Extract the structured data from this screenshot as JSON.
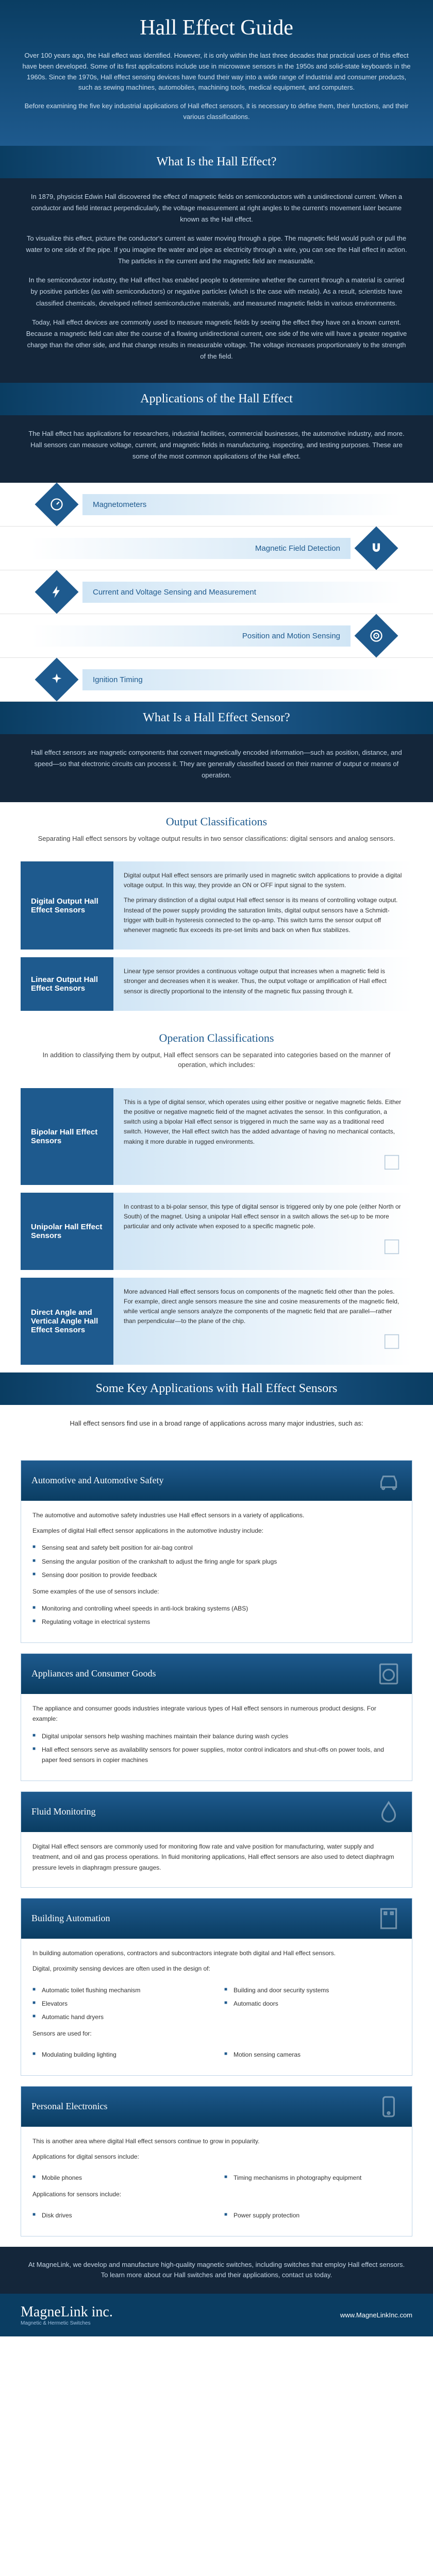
{
  "colors": {
    "darkBlue": "#0a3d62",
    "medBlue": "#1e5a8e",
    "lightBlue": "#d0e5f5",
    "darkBg": "#14263a",
    "textLight": "#c5d5e5"
  },
  "header": {
    "title": "Hall Effect Guide",
    "p1": "Over 100 years ago, the Hall effect was identified. However, it is only within the last three decades that practical uses of this effect have been developed. Some of its first applications include use in microwave sensors in the 1950s and solid-state keyboards in the 1960s. Since the 1970s, Hall effect sensing devices have found their way into a wide range of industrial and consumer products, such as sewing machines, automobiles, machining tools, medical equipment, and computers.",
    "p2": "Before examining the five key industrial applications of Hall effect sensors, it is necessary to define them, their functions, and their various classifications."
  },
  "whatIs": {
    "title": "What Is the Hall Effect?",
    "p1": "In 1879, physicist Edwin Hall discovered the effect of magnetic fields on semiconductors with a unidirectional current. When a conductor and field interact perpendicularly, the voltage measurement at right angles to the current's movement later became known as the Hall effect.",
    "p2": "To visualize this effect, picture the conductor's current as water moving through a pipe. The magnetic field would push or pull the water to one side of the pipe. If you imagine the water and pipe as electricity through a wire, you can see the Hall effect in action. The particles in the current and the magnetic field are measurable.",
    "p3": "In the semiconductor industry, the Hall effect has enabled people to determine whether the current through a material is carried by positive particles (as with semiconductors) or negative particles (which is the case with metals). As a result, scientists have classified chemicals, developed refined semiconductive materials, and measured magnetic fields in various environments.",
    "p4": "Today, Hall effect devices are commonly used to measure magnetic fields by seeing the effect they have on a known current. Because a magnetic field can alter the course of a flowing unidirectional current, one side of the wire will have a greater negative charge than the other side, and that change results in measurable voltage. The voltage increases proportionately to the strength of the field."
  },
  "applications": {
    "title": "Applications of the Hall Effect",
    "intro": "The Hall effect has applications for researchers, industrial facilities, commercial businesses, the automotive industry, and more. Hall sensors can measure voltage, current, and magnetic fields in manufacturing, inspecting, and testing purposes. These are some of the most common applications of the Hall effect.",
    "items": [
      "Magnetometers",
      "Magnetic Field Detection",
      "Current and Voltage Sensing and Measurement",
      "Position and Motion Sensing",
      "Ignition Timing"
    ]
  },
  "sensor": {
    "title": "What Is a Hall Effect Sensor?",
    "intro": "Hall effect sensors are magnetic components that convert magnetically encoded information—such as position, distance, and speed—so that electronic circuits can process it. They are generally classified based on their manner of output or means of operation."
  },
  "outputClass": {
    "title": "Output Classifications",
    "desc": "Separating Hall effect sensors by voltage output results in two sensor classifications: digital sensors and analog sensors.",
    "cards": [
      {
        "title": "Digital Output Hall Effect Sensors",
        "body": [
          "Digital output Hall effect sensors are primarily used in magnetic switch applications to provide a digital voltage output. In this way, they provide an ON or OFF input signal to the system.",
          "The primary distinction of a digital output Hall effect sensor is its means of controlling voltage output. Instead of the power supply providing the saturation limits, digital output sensors have a Schmidt-trigger with built-in hysteresis connected to the op-amp. This switch turns the sensor output off whenever magnetic flux exceeds its pre-set limits and back on when flux stabilizes."
        ]
      },
      {
        "title": "Linear Output Hall Effect Sensors",
        "body": [
          "Linear type sensor provides a continuous voltage output that increases when a magnetic field is stronger and decreases when it is weaker. Thus, the output voltage or amplification of Hall effect sensor is directly proportional to the intensity of the magnetic flux passing through it."
        ]
      }
    ]
  },
  "opClass": {
    "title": "Operation Classifications",
    "desc": "In addition to classifying them by output, Hall effect sensors can be separated into categories based on the manner of operation, which includes:",
    "cards": [
      {
        "title": "Bipolar Hall Effect Sensors",
        "body": [
          "This is a type of digital sensor, which operates using either positive or negative magnetic fields. Either the positive or negative magnetic field of the magnet activates the sensor. In this configuration, a switch using a bipolar Hall effect sensor is triggered in much the same way as a traditional reed switch. However, the Hall effect switch has the added advantage of having no mechanical contacts, making it more durable in rugged environments."
        ]
      },
      {
        "title": "Unipolar Hall Effect Sensors",
        "body": [
          "In contrast to a bi-polar sensor, this type of digital sensor is triggered only by one pole (either North or South) of the magnet. Using a unipolar Hall effect sensor in a switch allows the set-up to be more particular and only activate when exposed to a specific magnetic pole."
        ]
      },
      {
        "title": "Direct Angle and Vertical Angle Hall Effect Sensors",
        "body": [
          "More advanced Hall effect sensors focus on components of the magnetic field other than the poles. For example, direct angle sensors measure the sine and cosine measurements of the magnetic field, while vertical angle sensors analyze the components of the magnetic field that are parallel—rather than perpendicular—to the plane of the chip."
        ]
      }
    ]
  },
  "keyApps": {
    "title": "Some Key Applications with Hall Effect Sensors",
    "intro": "Hall effect sensors find use in a broad range of applications across many major industries, such as:",
    "sections": [
      {
        "title": "Automotive and Automotive Safety",
        "p": [
          "The automotive and automotive safety industries use Hall effect sensors in a variety of applications.",
          "Examples of digital Hall effect sensor applications in the automotive industry include:"
        ],
        "list1": [
          "Sensing seat and safety belt position for air-bag control",
          "Sensing the angular position of the crankshaft to adjust the firing angle for spark plugs",
          "Sensing door position to provide feedback"
        ],
        "p2": "Some examples of the use of sensors include:",
        "list2": [
          "Monitoring and controlling wheel speeds in anti-lock braking systems (ABS)",
          "Regulating voltage in electrical systems"
        ],
        "icon": "car"
      },
      {
        "title": "Appliances and Consumer Goods",
        "p": [
          "The appliance and consumer goods industries integrate various types of Hall effect sensors in numerous product designs. For example:"
        ],
        "list1": [
          "Digital unipolar sensors help washing machines maintain their balance during wash cycles",
          "Hall effect sensors serve as availability sensors for power supplies, motor control indicators and shut-offs on power tools, and paper feed sensors in copier machines"
        ],
        "icon": "washer"
      },
      {
        "title": "Fluid Monitoring",
        "p": [
          "Digital Hall effect sensors are commonly used for monitoring flow rate and valve position for manufacturing, water supply and treatment, and oil and gas process operations. In fluid monitoring applications, Hall effect sensors are also used to detect diaphragm pressure levels in diaphragm pressure gauges."
        ],
        "icon": "drop"
      },
      {
        "title": "Building Automation",
        "p": [
          "In building automation operations, contractors and subcontractors integrate both digital and Hall effect sensors.",
          "Digital, proximity sensing devices are often used in the design of:"
        ],
        "cols": [
          [
            "Automatic toilet flushing mechanism",
            "Elevators",
            "Automatic hand dryers"
          ],
          [
            "Building and door security systems",
            "Automatic doors"
          ]
        ],
        "p2": "Sensors are used for:",
        "cols2": [
          [
            "Modulating building lighting"
          ],
          [
            "Motion sensing cameras"
          ]
        ],
        "icon": "building"
      },
      {
        "title": "Personal Electronics",
        "p": [
          "This is another area where digital Hall effect sensors continue to grow in popularity.",
          "Applications for digital sensors include:"
        ],
        "cols": [
          [
            "Mobile phones"
          ],
          [
            "Timing mechanisms in photography equipment"
          ]
        ],
        "p2": "Applications for sensors include:",
        "cols2": [
          [
            "Disk drives"
          ],
          [
            "Power supply protection"
          ]
        ],
        "icon": "phone"
      }
    ]
  },
  "footer": {
    "text": "At MagneLink, we develop and manufacture high-quality magnetic switches, including switches that employ Hall effect sensors. To learn more about our Hall switches and their applications, contact us today.",
    "logo": "MagneLink inc.",
    "tagline": "Magnetic & Hermetic Switches",
    "url": "www.MagneLinkInc.com"
  }
}
